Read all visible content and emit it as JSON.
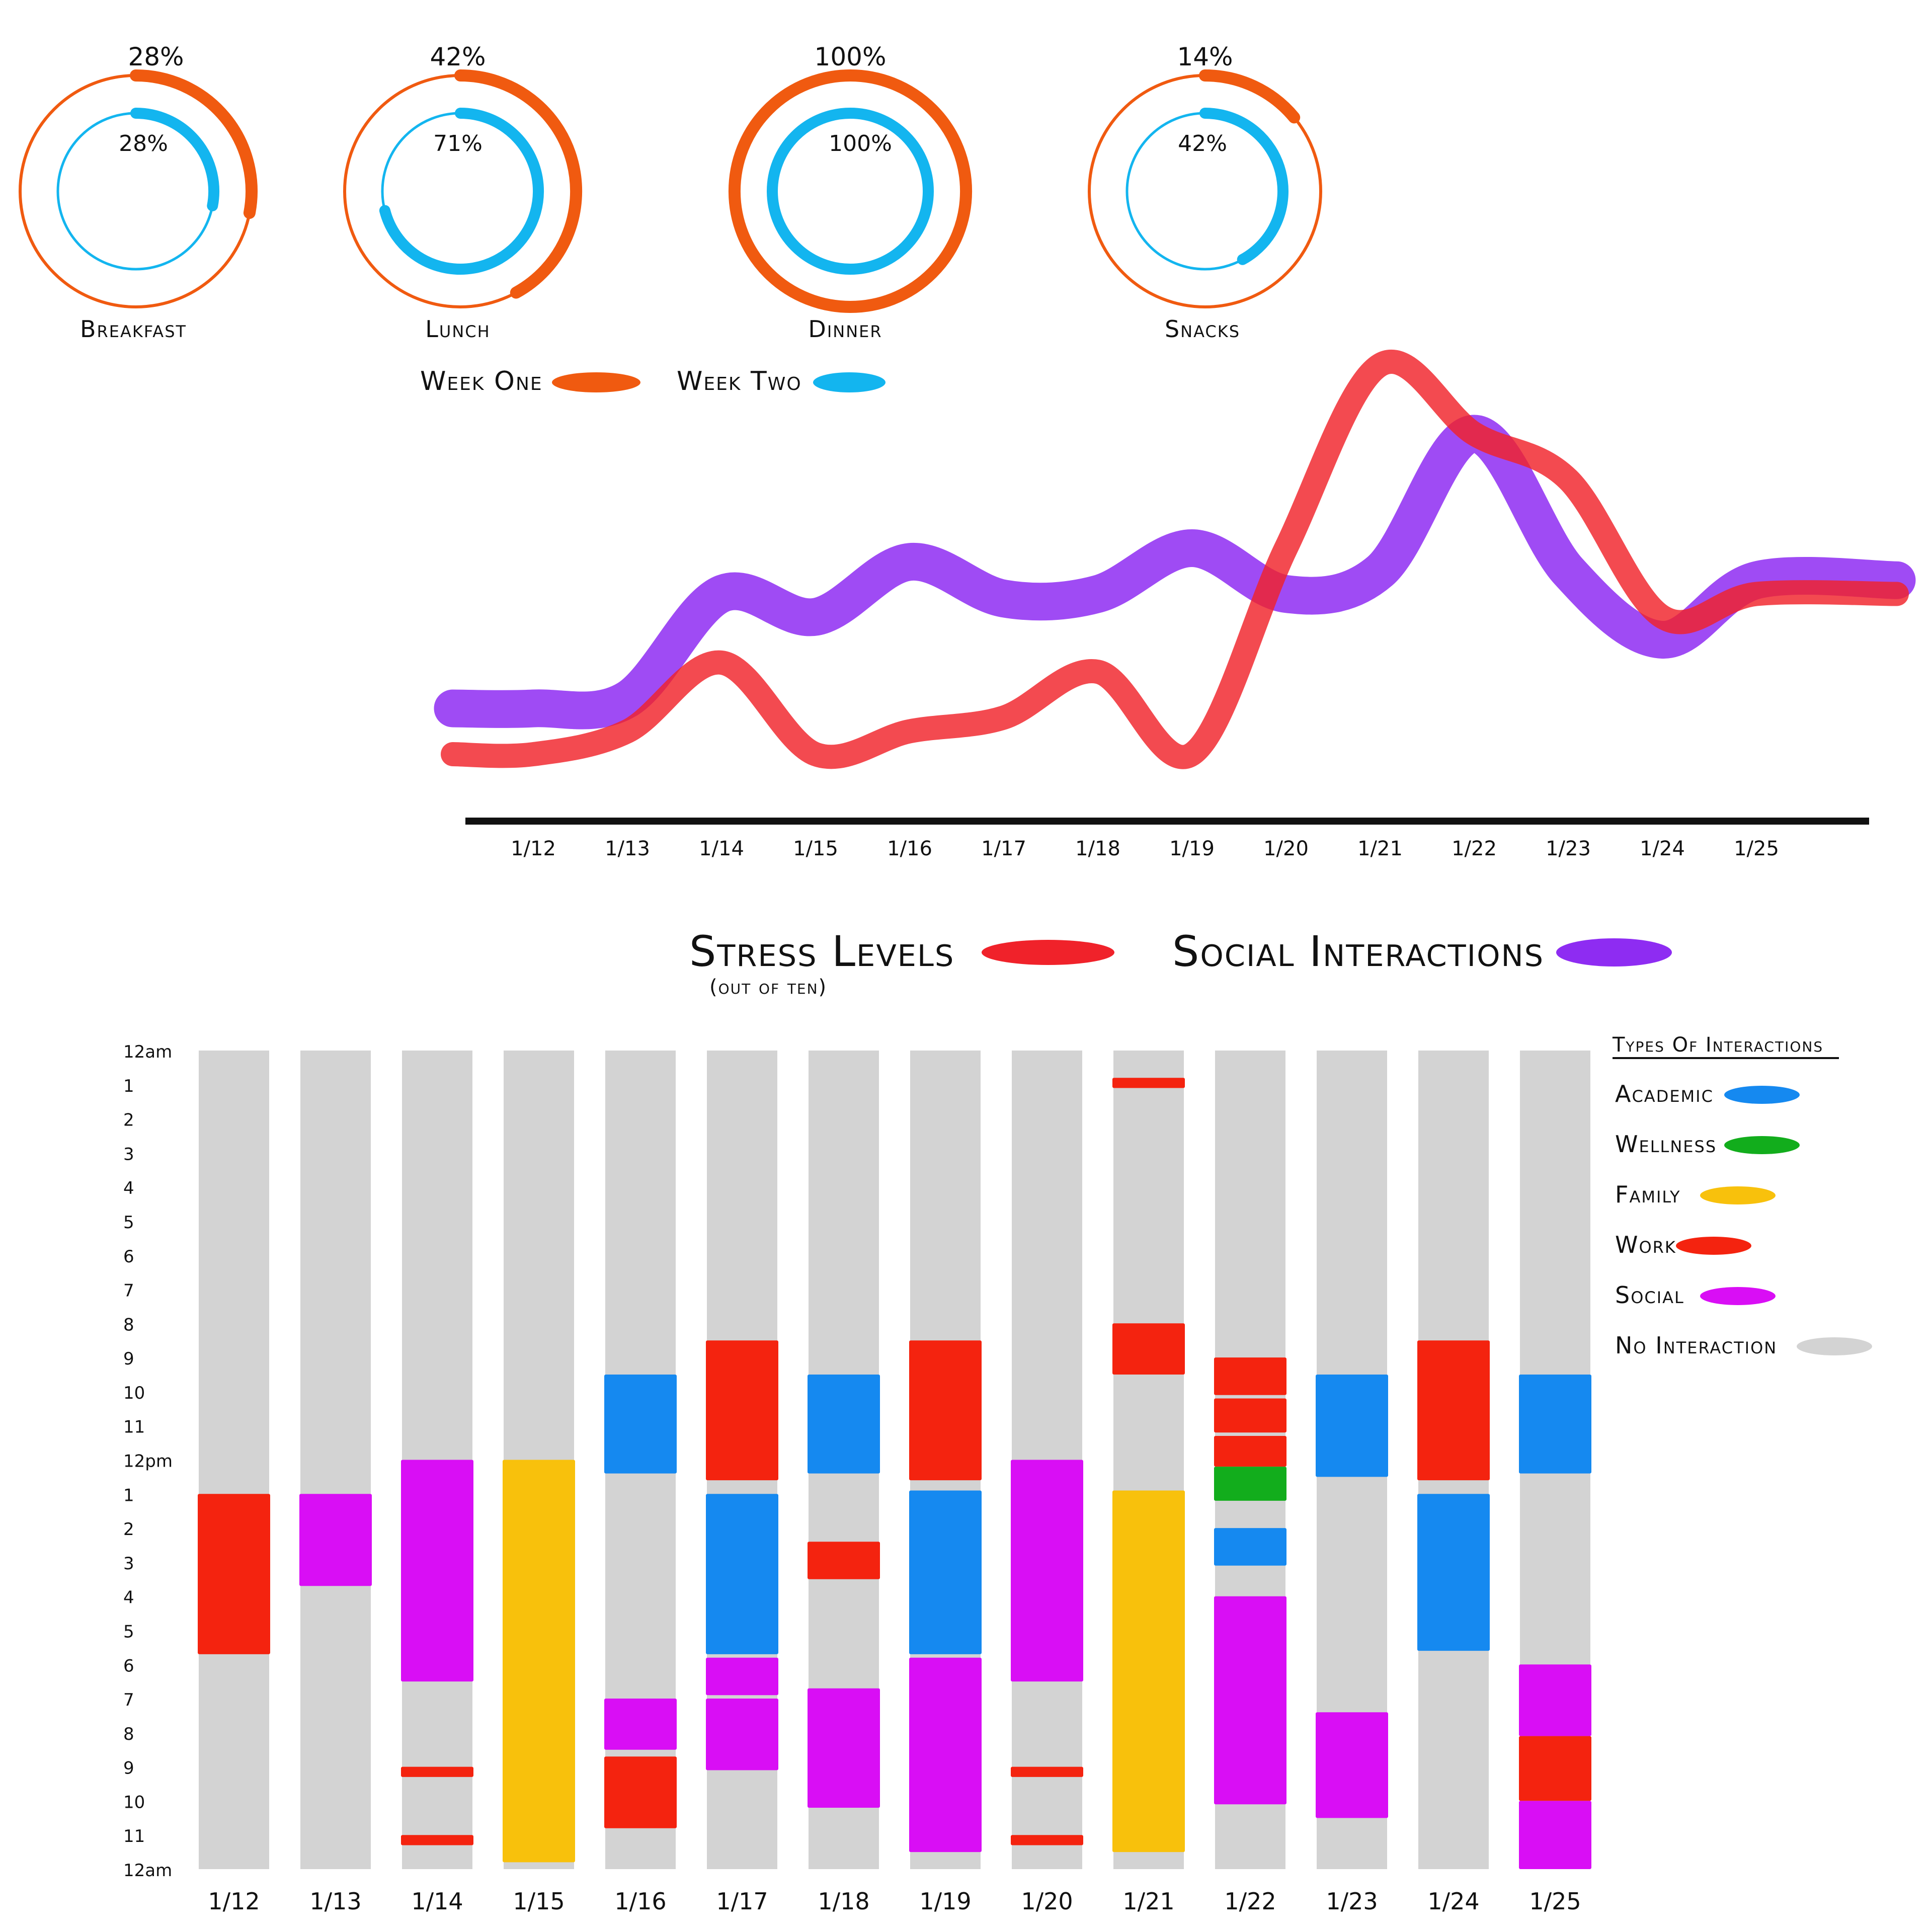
{
  "meals": {
    "items": [
      {
        "label": "Breakfast",
        "week_one_pct": 28,
        "week_two_pct": 28,
        "week_one_text": "28%",
        "week_two_text": "28%"
      },
      {
        "label": "Lunch",
        "week_one_pct": 42,
        "week_two_pct": 71,
        "week_one_text": "42%",
        "week_two_text": "71%"
      },
      {
        "label": "Dinner",
        "week_one_pct": 100,
        "week_two_pct": 100,
        "week_one_text": "100%",
        "week_two_text": "100%"
      },
      {
        "label": "Snacks",
        "week_one_pct": 14,
        "week_two_pct": 42,
        "week_one_text": "14%",
        "week_two_text": "42%"
      }
    ],
    "legend": [
      {
        "label": "Week One",
        "color": "#f05a10"
      },
      {
        "label": "Week Two",
        "color": "#13b5ef"
      }
    ]
  },
  "chart_data": [
    {
      "type": "line",
      "title": "",
      "x": [
        "1/12",
        "1/13",
        "1/14",
        "1/15",
        "1/16",
        "1/17",
        "1/18",
        "1/19",
        "1/20",
        "1/21",
        "1/22",
        "1/23",
        "1/24",
        "1/25"
      ],
      "series": [
        {
          "name": "Stress Levels",
          "note": "(out of ten)",
          "color": "#f0222a",
          "values": [
            1.0,
            1.5,
            3.0,
            1.0,
            1.5,
            1.8,
            2.8,
            1.0,
            5.5,
            9.5,
            8.0,
            7.0,
            4.0,
            4.5
          ]
        },
        {
          "name": "Social Interactions",
          "color": "#8e2cf2",
          "values": [
            2.0,
            2.2,
            4.5,
            4.0,
            5.2,
            4.4,
            4.5,
            5.5,
            4.5,
            5.0,
            8.0,
            5.0,
            3.5,
            4.8
          ]
        }
      ]
    },
    {
      "type": "table",
      "title": "Types Of Interactions",
      "days": [
        "1/12",
        "1/13",
        "1/14",
        "1/15",
        "1/16",
        "1/17",
        "1/18",
        "1/19",
        "1/20",
        "1/21",
        "1/22",
        "1/23",
        "1/24",
        "1/25"
      ],
      "hour_labels": [
        "12am",
        "1",
        "2",
        "3",
        "4",
        "5",
        "6",
        "7",
        "8",
        "9",
        "10",
        "11",
        "12pm",
        "1",
        "2",
        "3",
        "4",
        "5",
        "6",
        "7",
        "8",
        "9",
        "10",
        "11",
        "12am"
      ],
      "categories": [
        {
          "key": "academic",
          "label": "Academic",
          "color": "#1589f0"
        },
        {
          "key": "wellness",
          "label": "Wellness",
          "color": "#12ad1c"
        },
        {
          "key": "family",
          "label": "Family",
          "color": "#f8c10c"
        },
        {
          "key": "work",
          "label": "Work",
          "color": "#f4230f"
        },
        {
          "key": "social",
          "label": "Social",
          "color": "#d90ef5"
        },
        {
          "key": "none",
          "label": "No Interaction",
          "color": "#d3d3d3"
        }
      ],
      "blocks": [
        [
          {
            "type": "work",
            "start": 13,
            "end": 17.7
          }
        ],
        [
          {
            "type": "social",
            "start": 13,
            "end": 15.7
          }
        ],
        [
          {
            "type": "social",
            "start": 12,
            "end": 18.5
          },
          {
            "type": "work",
            "start": 21,
            "end": 21.3
          },
          {
            "type": "work",
            "start": 23,
            "end": 23.3
          }
        ],
        [
          {
            "type": "family",
            "start": 12,
            "end": 23.8
          }
        ],
        [
          {
            "type": "academic",
            "start": 9.5,
            "end": 12.4
          },
          {
            "type": "social",
            "start": 19,
            "end": 20.5
          },
          {
            "type": "work",
            "start": 20.7,
            "end": 22.8
          }
        ],
        [
          {
            "type": "work",
            "start": 8.5,
            "end": 12.6
          },
          {
            "type": "academic",
            "start": 13,
            "end": 17.7
          },
          {
            "type": "social",
            "start": 17.8,
            "end": 18.9
          },
          {
            "type": "social",
            "start": 19,
            "end": 21.1
          }
        ],
        [
          {
            "type": "academic",
            "start": 9.5,
            "end": 12.4
          },
          {
            "type": "work",
            "start": 14.4,
            "end": 15.5
          },
          {
            "type": "social",
            "start": 18.7,
            "end": 22.2
          }
        ],
        [
          {
            "type": "work",
            "start": 8.5,
            "end": 12.6
          },
          {
            "type": "academic",
            "start": 12.9,
            "end": 17.7
          },
          {
            "type": "social",
            "start": 17.8,
            "end": 23.5
          }
        ],
        [
          {
            "type": "social",
            "start": 12,
            "end": 18.5
          },
          {
            "type": "work",
            "start": 21,
            "end": 21.3
          },
          {
            "type": "work",
            "start": 23,
            "end": 23.3
          }
        ],
        [
          {
            "type": "work",
            "start": 0.8,
            "end": 1.1
          },
          {
            "type": "work",
            "start": 8,
            "end": 9.5
          },
          {
            "type": "family",
            "start": 12.9,
            "end": 23.5
          }
        ],
        [
          {
            "type": "work",
            "start": 9,
            "end": 10.1
          },
          {
            "type": "work",
            "start": 10.2,
            "end": 11.2
          },
          {
            "type": "work",
            "start": 11.3,
            "end": 12.2
          },
          {
            "type": "wellness",
            "start": 12.2,
            "end": 13.2
          },
          {
            "type": "academic",
            "start": 14,
            "end": 15.1
          },
          {
            "type": "social",
            "start": 16,
            "end": 22.1
          }
        ],
        [
          {
            "type": "academic",
            "start": 9.5,
            "end": 12.5
          },
          {
            "type": "social",
            "start": 19.4,
            "end": 22.5
          }
        ],
        [
          {
            "type": "work",
            "start": 8.5,
            "end": 12.6
          },
          {
            "type": "academic",
            "start": 13,
            "end": 17.6
          }
        ],
        [
          {
            "type": "academic",
            "start": 9.5,
            "end": 12.4
          },
          {
            "type": "social",
            "start": 18,
            "end": 20.1
          },
          {
            "type": "work",
            "start": 20.1,
            "end": 22
          },
          {
            "type": "social",
            "start": 22,
            "end": 24
          }
        ]
      ]
    }
  ]
}
